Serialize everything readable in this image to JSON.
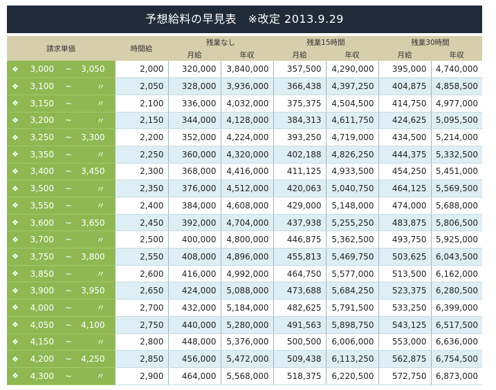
{
  "title": "予想給料の早見表　※改定 2013.9.29",
  "header": {
    "rate": "請求単価",
    "hourly": "時間給",
    "groups": [
      "残業なし",
      "残業15時間",
      "残業30時間"
    ],
    "sub": [
      "月給",
      "年収",
      "月給",
      "年収",
      "月給",
      "年収"
    ]
  },
  "rows": [
    [
      "3,000",
      "~",
      "3,050",
      "2,000",
      "320,000",
      "3,840,000",
      "357,500",
      "4,290,000",
      "395,000",
      "4,740,000"
    ],
    [
      "3,100",
      "~",
      "〃",
      "2,050",
      "328,000",
      "3,936,000",
      "366,438",
      "4,397,250",
      "404,875",
      "4,858,500"
    ],
    [
      "3,150",
      "~",
      "〃",
      "2,100",
      "336,000",
      "4,032,000",
      "375,375",
      "4,504,500",
      "414,750",
      "4,977,000"
    ],
    [
      "3,200",
      "~",
      "〃",
      "2,150",
      "344,000",
      "4,128,000",
      "384,313",
      "4,611,750",
      "424,625",
      "5,095,500"
    ],
    [
      "3,250",
      "~",
      "3,300",
      "2,200",
      "352,000",
      "4,224,000",
      "393,250",
      "4,719,000",
      "434,500",
      "5,214,000"
    ],
    [
      "3,350",
      "~",
      "〃",
      "2,250",
      "360,000",
      "4,320,000",
      "402,188",
      "4,826,250",
      "444,375",
      "5,332,500"
    ],
    [
      "3,400",
      "~",
      "3,450",
      "2,300",
      "368,000",
      "4,416,000",
      "411,125",
      "4,933,500",
      "454,250",
      "5,451,000"
    ],
    [
      "3,500",
      "~",
      "〃",
      "2,350",
      "376,000",
      "4,512,000",
      "420,063",
      "5,040,750",
      "464,125",
      "5,569,500"
    ],
    [
      "3,550",
      "~",
      "〃",
      "2,400",
      "384,000",
      "4,608,000",
      "429,000",
      "5,148,000",
      "474,000",
      "5,688,000"
    ],
    [
      "3,600",
      "~",
      "3,650",
      "2,450",
      "392,000",
      "4,704,000",
      "437,938",
      "5,255,250",
      "483,875",
      "5,806,500"
    ],
    [
      "3,700",
      "~",
      "〃",
      "2,500",
      "400,000",
      "4,800,000",
      "446,875",
      "5,362,500",
      "493,750",
      "5,925,000"
    ],
    [
      "3,750",
      "~",
      "3,800",
      "2,550",
      "408,000",
      "4,896,000",
      "455,813",
      "5,469,750",
      "503,625",
      "6,043,500"
    ],
    [
      "3,850",
      "~",
      "〃",
      "2,600",
      "416,000",
      "4,992,000",
      "464,750",
      "5,577,000",
      "513,500",
      "6,162,000"
    ],
    [
      "3,900",
      "~",
      "3,950",
      "2,650",
      "424,000",
      "5,088,000",
      "473,688",
      "5,684,250",
      "523,375",
      "6,280,500"
    ],
    [
      "4,000",
      "~",
      "〃",
      "2,700",
      "432,000",
      "5,184,000",
      "482,625",
      "5,791,500",
      "533,250",
      "6,399,000"
    ],
    [
      "4,050",
      "~",
      "4,100",
      "2,750",
      "440,000",
      "5,280,000",
      "491,563",
      "5,898,750",
      "543,125",
      "6,517,500"
    ],
    [
      "4,150",
      "~",
      "〃",
      "2,800",
      "448,000",
      "5,376,000",
      "500,500",
      "6,006,000",
      "553,000",
      "6,636,000"
    ],
    [
      "4,200",
      "~",
      "4,250",
      "2,850",
      "456,000",
      "5,472,000",
      "509,438",
      "6,113,250",
      "562,875",
      "6,754,500"
    ],
    [
      "4,300",
      "~",
      "〃",
      "2,900",
      "464,000",
      "5,568,000",
      "518,375",
      "6,220,500",
      "572,750",
      "6,873,000"
    ]
  ]
}
